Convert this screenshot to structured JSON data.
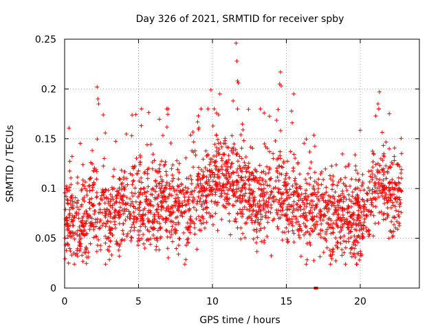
{
  "chart_data": {
    "type": "scatter",
    "title": "Day 326 of 2021, SRMTID for receiver spby",
    "xlabel": "GPS time / hours",
    "ylabel": "SRMTID / TECUs",
    "xlim": [
      0,
      24
    ],
    "ylim": [
      0,
      0.25
    ],
    "x_ticks": [
      0,
      5,
      10,
      15,
      20
    ],
    "x_tick_labels": [
      "0",
      "5",
      "10",
      "15",
      "20"
    ],
    "y_ticks": [
      0,
      0.05,
      0.1,
      0.15,
      0.2,
      0.25
    ],
    "y_tick_labels": [
      "0",
      "0.05",
      "0.1",
      "0.15",
      "0.2",
      "0.25"
    ],
    "grid": true,
    "marker": "+",
    "color": "#ff0000",
    "series": [
      {
        "name": "SRMTID",
        "baseline": [
          [
            0,
            0.075
          ],
          [
            0.5,
            0.07
          ],
          [
            1,
            0.06
          ],
          [
            1.5,
            0.075
          ],
          [
            2,
            0.085
          ],
          [
            2.5,
            0.075
          ],
          [
            3,
            0.07
          ],
          [
            3.5,
            0.08
          ],
          [
            4,
            0.085
          ],
          [
            5,
            0.085
          ],
          [
            6,
            0.085
          ],
          [
            7,
            0.085
          ],
          [
            8,
            0.075
          ],
          [
            9,
            0.09
          ],
          [
            9.5,
            0.1
          ],
          [
            10,
            0.11
          ],
          [
            10.5,
            0.115
          ],
          [
            11,
            0.11
          ],
          [
            11.5,
            0.1
          ],
          [
            12,
            0.1
          ],
          [
            12.5,
            0.095
          ],
          [
            13,
            0.09
          ],
          [
            13.5,
            0.09
          ],
          [
            14,
            0.1
          ],
          [
            14.5,
            0.1
          ],
          [
            15,
            0.09
          ],
          [
            15.5,
            0.085
          ],
          [
            16,
            0.08
          ],
          [
            16.5,
            0.075
          ],
          [
            17,
            0.075
          ],
          [
            17.5,
            0.08
          ],
          [
            18,
            0.075
          ],
          [
            18.5,
            0.07
          ],
          [
            19,
            0.07
          ],
          [
            19.5,
            0.065
          ],
          [
            20,
            0.07
          ],
          [
            20.5,
            0.085
          ],
          [
            21,
            0.1
          ],
          [
            21.5,
            0.11
          ],
          [
            22,
            0.09
          ],
          [
            22.5,
            0.09
          ],
          [
            22.8,
            0.1
          ]
        ],
        "points_per_hour": 100,
        "x_range": [
          0,
          22.8
        ],
        "spread": 0.022,
        "spikes": [
          [
            2.2,
            0.202
          ],
          [
            2.25,
            0.19
          ],
          [
            2.3,
            0.185
          ],
          [
            9.9,
            0.199
          ],
          [
            10.5,
            0.195
          ],
          [
            11.4,
            0.188
          ],
          [
            11.6,
            0.246
          ],
          [
            11.65,
            0.228
          ],
          [
            11.7,
            0.208
          ],
          [
            11.75,
            0.206
          ],
          [
            14.6,
            0.217
          ],
          [
            14.55,
            0.205
          ],
          [
            14.65,
            0.203
          ],
          [
            15.5,
            0.195
          ],
          [
            21.3,
            0.197
          ],
          [
            21.2,
            0.185
          ]
        ],
        "outliers": [
          [
            17.0,
            0.0
          ]
        ]
      }
    ]
  }
}
